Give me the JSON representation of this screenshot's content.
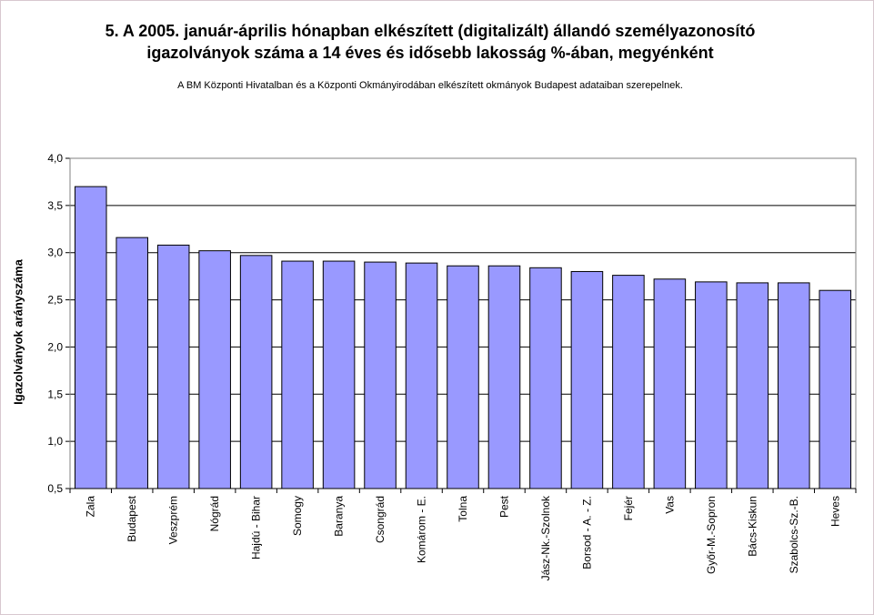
{
  "chart_data": {
    "type": "bar",
    "title_lines": [
      "5. A 2005. január-április hónapban elkészített (digitalizált) állandó személyazonosító",
      "igazolványok száma a 14 éves és idősebb lakosság %-ában,  megyénként"
    ],
    "subtitle": "A BM Központi Hivatalban és a Központi Okmányirodában elkészített  okmányok Budapest adataiban szerepelnek.",
    "xlabel": "",
    "ylabel": "Igazolványok arányszáma",
    "ylim": [
      0.5,
      4.0
    ],
    "yticks": [
      "0,5",
      "1,0",
      "1,5",
      "2,0",
      "2,5",
      "3,0",
      "3,5",
      "4,0"
    ],
    "grid": true,
    "legend": "none",
    "categories": [
      "Zala",
      "Budapest",
      "Veszprém",
      "Nógrád",
      "Hajdú - Bihar",
      "Somogy",
      "Baranya",
      "Csongrád",
      "Komárom - E.",
      "Tolna",
      "Pest",
      "Jász-Nk.-Szolnok",
      "Borsod - A. - Z.",
      "Fejér",
      "Vas",
      "Győr-M.-Sopron",
      "Bács-Kiskun",
      "Szabolcs-Sz.-B.",
      "Heves"
    ],
    "values": [
      3.7,
      3.16,
      3.08,
      3.02,
      2.97,
      2.91,
      2.91,
      2.9,
      2.89,
      2.86,
      2.86,
      2.84,
      2.8,
      2.76,
      2.72,
      2.69,
      2.68,
      2.68,
      2.6
    ],
    "colors": {
      "bar": "#9999ff",
      "bar_border": "#000000",
      "plot_border": "#808080",
      "grid": "#000000"
    }
  }
}
